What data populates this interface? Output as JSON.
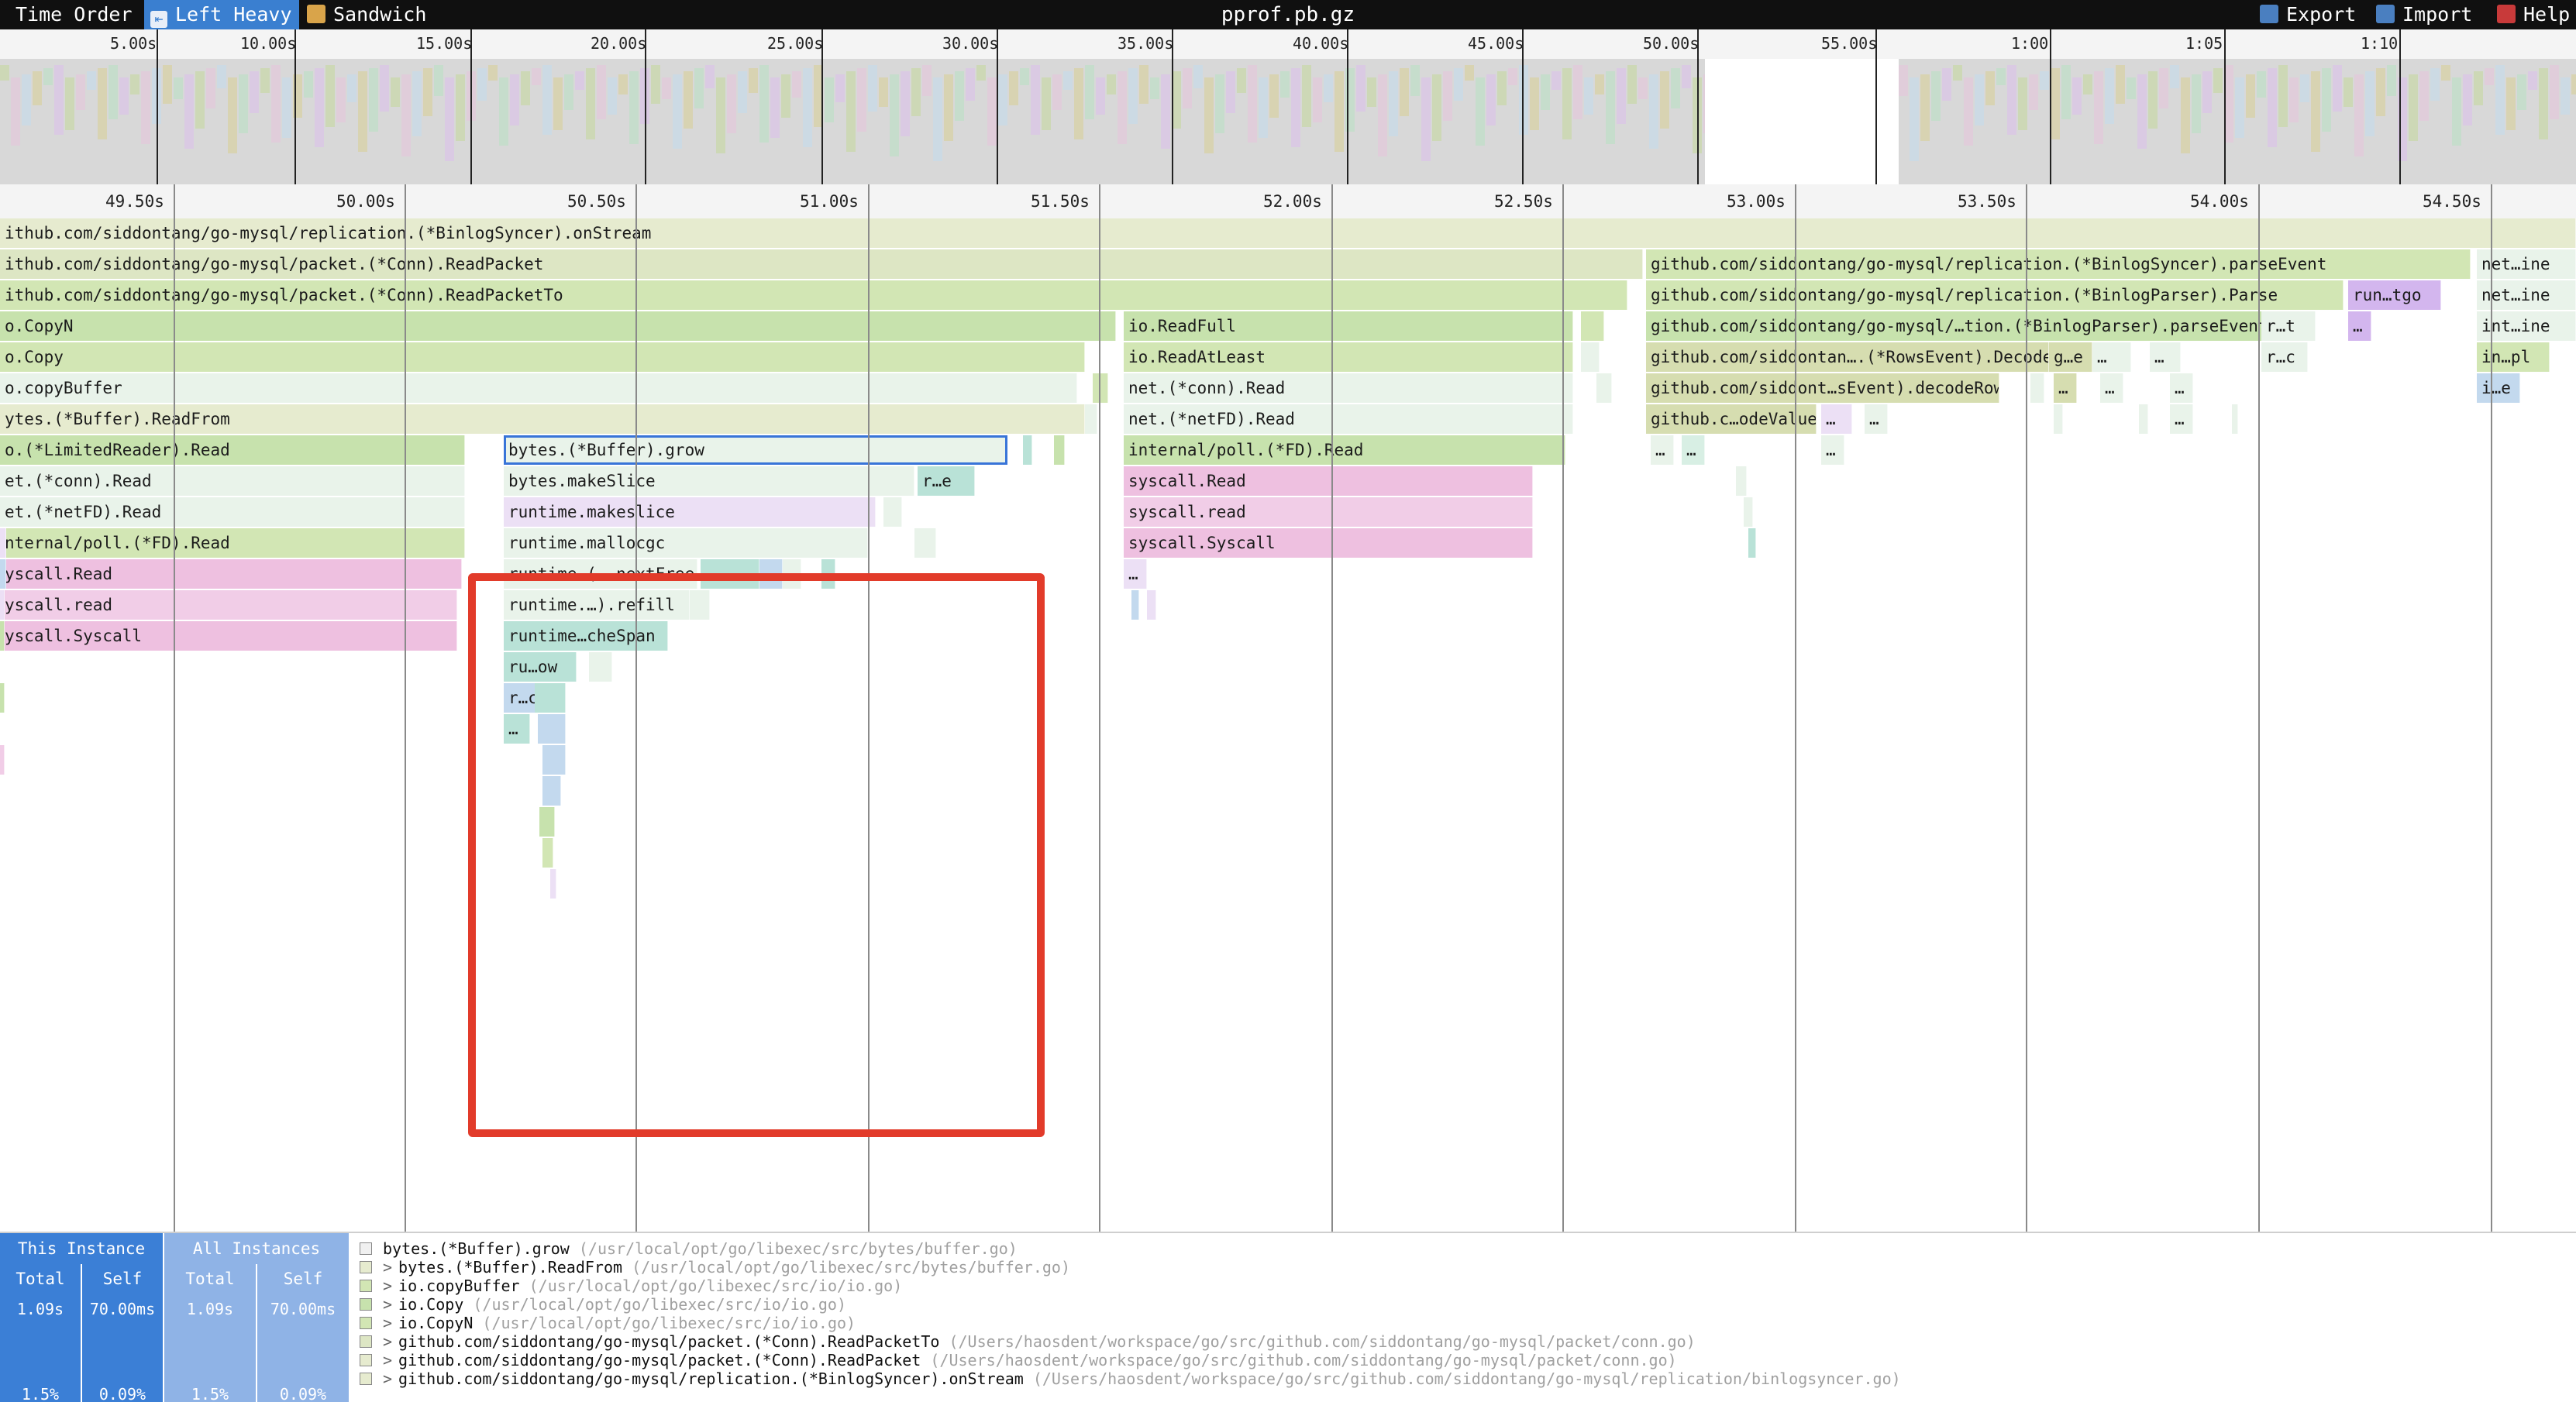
{
  "toolbar": {
    "time_order": "Time Order",
    "left_heavy": "Left Heavy",
    "sandwich": "Sandwich",
    "title": "pprof.pb.gz",
    "export": "Export",
    "import": "Import",
    "help": "Help"
  },
  "minimap": {
    "ticks": [
      "5.00s",
      "10.00s",
      "15.00s",
      "20.00s",
      "25.00s",
      "30.00s",
      "35.00s",
      "40.00s",
      "45.00s",
      "50.00s",
      "55.00s",
      "1:00",
      "1:05",
      "1:10"
    ]
  },
  "flame": {
    "ticks": [
      "49.50s",
      "50.00s",
      "50.50s",
      "51.00s",
      "51.50s",
      "52.00s",
      "52.50s",
      "53.00s",
      "53.50s",
      "54.00s",
      "54.50s"
    ]
  },
  "frames": [
    "ithub.com/siddontang/go-mysql/replication.(*BinlogSyncer).onStream",
    "ithub.com/siddontang/go-mysql/packet.(*Conn).ReadPacket",
    "ithub.com/siddontang/go-mysql/packet.(*Conn).ReadPacketTo",
    "o.CopyN",
    "o.Copy",
    "o.copyBuffer",
    "ytes.(*Buffer).ReadFrom",
    "o.(*LimitedReader).Read",
    "et.(*conn).Read",
    "et.(*netFD).Read",
    "nternal/poll.(*FD).Read",
    "yscall.Read",
    "yscall.read",
    "yscall.Syscall",
    "bytes.(*Buffer).grow",
    "bytes.makeSlice",
    "r…e",
    "runtime.makeslice",
    "runtime.mallocgc",
    "runtime.(….nextFree",
    "…",
    "runtime.…).refill",
    "runtime…cheSpan",
    "ru…ow",
    "r…c",
    "…",
    "io.ReadFull",
    "io.ReadAtLeast",
    "net.(*conn).Read",
    "net.(*netFD).Read",
    "internal/poll.(*FD).Read",
    "syscall.Read",
    "syscall.read",
    "syscall.Syscall",
    "…",
    "github.com/siddontang/go-mysql/replication.(*BinlogSyncer).parseEvent",
    "github.com/siddontang/go-mysql/replication.(*BinlogParser).Parse",
    "github.com/siddontang/go-mysql/…tion.(*BinlogParser).parseEvent",
    "github.com/siddontan….(*RowsEvent).Decode",
    "github.com/siddont…sEvent).decodeRows",
    "github.c…odeValue",
    "g…e",
    "…",
    "…",
    "…",
    "…",
    "…",
    "…",
    "…",
    "…",
    "…",
    "…",
    "…",
    "run…tgo",
    "r…t",
    "…",
    "r…c",
    "net…ine",
    "net…ine",
    "int…ine",
    "in…pl",
    "i…e"
  ],
  "stats": {
    "this_instance": "This Instance",
    "all_instances": "All Instances",
    "total": "Total",
    "self": "Self",
    "this_total": "1.09s",
    "this_self": "70.00ms",
    "all_total": "1.09s",
    "all_self": "70.00ms",
    "this_total_pct": "1.5%",
    "this_self_pct": "0.09%",
    "all_total_pct": "1.5%",
    "all_self_pct": "0.09%"
  },
  "stack": [
    {
      "name": "bytes.(*Buffer).grow",
      "path": "(/usr/local/opt/go/libexec/src/bytes/buffer.go)",
      "arrow": ""
    },
    {
      "name": "bytes.(*Buffer).ReadFrom",
      "path": "(/usr/local/opt/go/libexec/src/bytes/buffer.go)",
      "arrow": ">"
    },
    {
      "name": "io.copyBuffer",
      "path": "(/usr/local/opt/go/libexec/src/io/io.go)",
      "arrow": ">"
    },
    {
      "name": "io.Copy",
      "path": "(/usr/local/opt/go/libexec/src/io/io.go)",
      "arrow": ">"
    },
    {
      "name": "io.CopyN",
      "path": "(/usr/local/opt/go/libexec/src/io/io.go)",
      "arrow": ">"
    },
    {
      "name": "github.com/siddontang/go-mysql/packet.(*Conn).ReadPacketTo",
      "path": "(/Users/haosdent/workspace/go/src/github.com/siddontang/go-mysql/packet/conn.go)",
      "arrow": ">"
    },
    {
      "name": "github.com/siddontang/go-mysql/packet.(*Conn).ReadPacket",
      "path": "(/Users/haosdent/workspace/go/src/github.com/siddontang/go-mysql/packet/conn.go)",
      "arrow": ">"
    },
    {
      "name": "github.com/siddontang/go-mysql/replication.(*BinlogSyncer).onStream",
      "path": "(/Users/haosdent/workspace/go/src/github.com/siddontang/go-mysql/replication/binlogsyncer.go)",
      "arrow": ">"
    }
  ],
  "colors": {
    "toolbar_bg": "#101010",
    "selected_tab": "#3a7fd0",
    "highlight": "#e23b2a",
    "this_instance": "#3b7fd6",
    "all_instances": "#8fb3e6"
  },
  "icons": {
    "time_order": "list-icon",
    "left_heavy": "arrow-left-icon",
    "sandwich": "sandwich-icon",
    "export": "export-icon",
    "import": "import-icon",
    "help": "question-icon"
  }
}
